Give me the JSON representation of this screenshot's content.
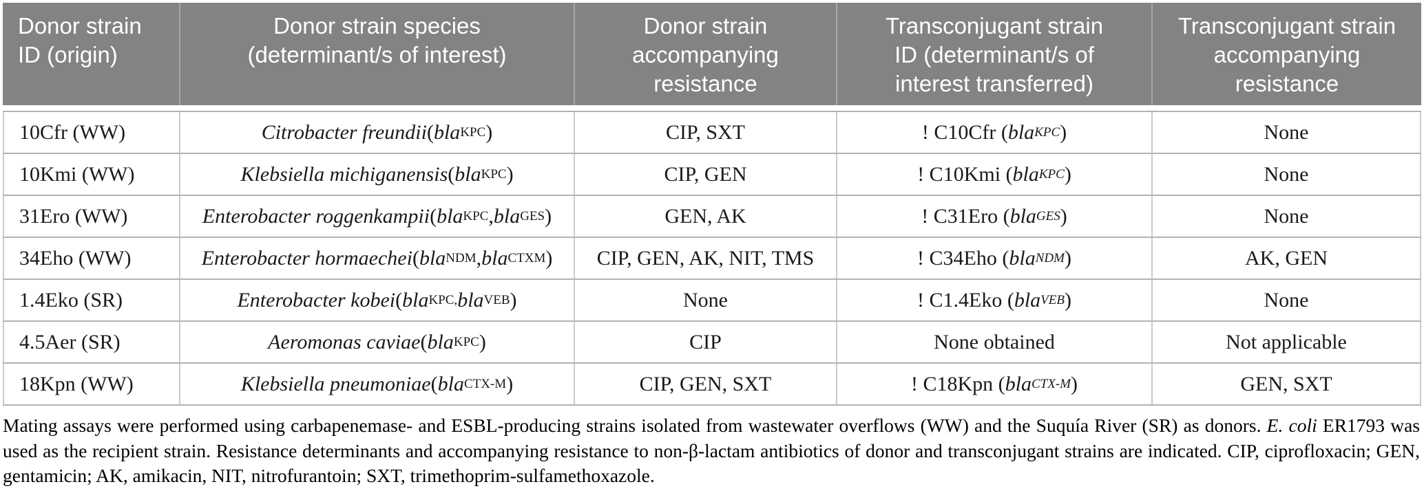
{
  "colors": {
    "header_bg": "#838383",
    "header_text": "#ffffff",
    "body_text": "#1a1a1a",
    "row_line": "#b2b2b2",
    "column_line": "#cbcbcb"
  },
  "table": {
    "columns": [
      {
        "id": "donor_id",
        "label": "Donor strain\nID (origin)"
      },
      {
        "id": "species",
        "label": "Donor strain species\n(determinant/s of interest)"
      },
      {
        "id": "donor_resistance",
        "label": "Donor strain\naccompanying\nresistance"
      },
      {
        "id": "transconjugant_id",
        "label": "Transconjugant strain\nID (determinant/s of\ninterest transferred)"
      },
      {
        "id": "transconjugant_resistance",
        "label": "Transconjugant strain\naccompanying\nresistance"
      }
    ],
    "rows": [
      {
        "donor_id": "10Cfr (WW)",
        "species": "[i]Citrobacter freundii[/i] ([i]bla[/i][sub]KPC[/sub])",
        "donor_resistance": "CIP, SXT",
        "transconjugant_id": "! C10Cfr ([i]bla[/i][isub]KPC[/isub])",
        "transconjugant_resistance": "None"
      },
      {
        "donor_id": "10Kmi (WW)",
        "species": "[i]Klebsiella michiganensis[/i] ([i]bla[/i][sub]KPC[/sub])",
        "donor_resistance": "CIP, GEN",
        "transconjugant_id": "! C10Kmi ([i]bla[/i][isub]KPC[/isub])",
        "transconjugant_resistance": "None"
      },
      {
        "donor_id": "31Ero (WW)",
        "species": "[i]Enterobacter roggenkampii[/i] ([i]bla[/i][sub]KPC[/sub], [i]bla[/i][sub]GES[/sub])",
        "donor_resistance": "GEN, AK",
        "transconjugant_id": "! C31Ero ([i]bla[/i][isub]GES[/isub])",
        "transconjugant_resistance": "None"
      },
      {
        "donor_id": "34Eho (WW)",
        "species": "[i]Enterobacter hormaechei[/i] ([i]bla[/i][sub]NDM[/sub], [i]bla[/i][sub]CTXM[/sub])",
        "donor_resistance": "CIP, GEN, AK, NIT, TMS",
        "transconjugant_id": "! C34Eho ([i]bla[/i][isub]NDM[/isub])",
        "transconjugant_resistance": "AK, GEN"
      },
      {
        "donor_id": "1.4Eko (SR)",
        "species": "[i]Enterobacter kobei[/i] ([i]bla[/i][sub]KPC,[/sub] [i]bla[/i][sub]VEB[/sub])",
        "donor_resistance": "None",
        "transconjugant_id": "! C1.4Eko ([i]bla[/i][isub]VEB[/isub])",
        "transconjugant_resistance": "None"
      },
      {
        "donor_id": "4.5Aer (SR)",
        "species": "[i]Aeromonas caviae[/i] ([i]bla[/i][sub]KPC[/sub])",
        "donor_resistance": "CIP",
        "transconjugant_id": "None obtained",
        "transconjugant_resistance": "Not applicable"
      },
      {
        "donor_id": "18Kpn (WW)",
        "species": "[i]Klebsiella pneumoniae[/i] ([i]bla[/i][sub]CTX-M[/sub])",
        "donor_resistance": "CIP, GEN, SXT",
        "transconjugant_id": "! C18Kpn ([i]bla[/i][isub]CTX-M[/isub])",
        "transconjugant_resistance": "GEN, SXT"
      }
    ],
    "footnote": "Mating assays were performed using carbapenemase- and ESBL-producing strains isolated from wastewater overflows (WW) and the Suquía River (SR) as donors. [i]E. coli[/i] ER1793 was used as the recipient strain. Resistance determinants and accompanying resistance to non-β-lactam antibiotics of donor and transconjugant strains are indicated. CIP, ciprofloxacin; GEN, gentamicin; AK, amikacin, NIT, nitrofurantoin; SXT, trimethoprim-sulfamethoxazole."
  }
}
